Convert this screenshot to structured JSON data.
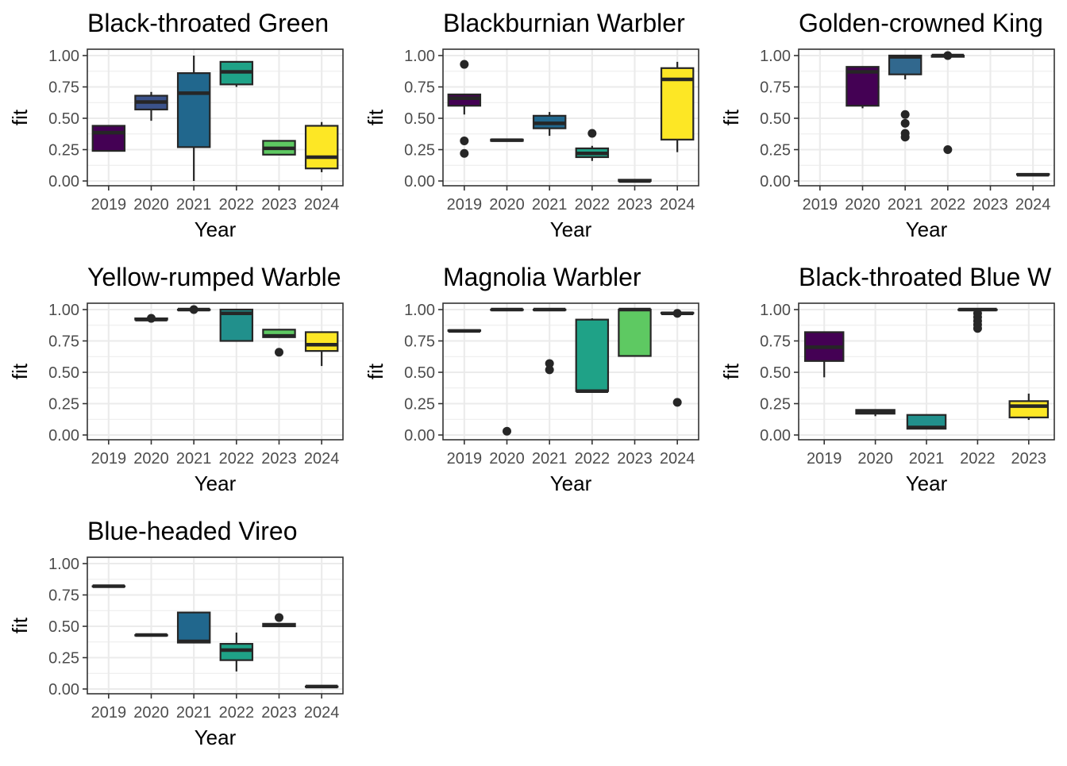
{
  "chart_data": {
    "type": "boxplot",
    "layout": "facet-grid-3-columns",
    "y_label": "fit",
    "x_label": "Year",
    "ylim": [
      0,
      1.0
    ],
    "y_ticks": [
      "0.00",
      "0.25",
      "0.50",
      "0.75",
      "1.00"
    ],
    "y_tick_values": [
      0,
      0.25,
      0.5,
      0.75,
      1.0
    ],
    "grid": true,
    "fill_colors": {
      "2019": "#440154",
      "2020": "#31688e",
      "2021": "#21908c",
      "2022": "#35b779",
      "2023": "#90d743",
      "2024": "#fde725"
    },
    "panels": [
      {
        "title": "Black-throated Green",
        "categories": [
          "2019",
          "2020",
          "2021",
          "2022",
          "2023",
          "2024"
        ],
        "boxes": [
          {
            "year": "2019",
            "fill": "#440154",
            "min": 0.24,
            "q1": 0.24,
            "median": 0.385,
            "q3": 0.44,
            "max": 0.44,
            "outliers": []
          },
          {
            "year": "2020",
            "fill": "#3b528b",
            "min": 0.48,
            "q1": 0.57,
            "median": 0.63,
            "q3": 0.68,
            "max": 0.71,
            "outliers": []
          },
          {
            "year": "2021",
            "fill": "#21678d",
            "min": 0.0,
            "q1": 0.27,
            "median": 0.7,
            "q3": 0.86,
            "max": 1.0,
            "outliers": []
          },
          {
            "year": "2022",
            "fill": "#1fa287",
            "min": 0.75,
            "q1": 0.77,
            "median": 0.87,
            "q3": 0.95,
            "max": 0.95,
            "outliers": []
          },
          {
            "year": "2023",
            "fill": "#5ec962",
            "min": 0.21,
            "q1": 0.21,
            "median": 0.26,
            "q3": 0.32,
            "max": 0.32,
            "outliers": []
          },
          {
            "year": "2024",
            "fill": "#fde725",
            "min": 0.07,
            "q1": 0.1,
            "median": 0.19,
            "q3": 0.44,
            "max": 0.47,
            "outliers": []
          }
        ]
      },
      {
        "title": "Blackburnian Warbler",
        "categories": [
          "2019",
          "2020",
          "2021",
          "2022",
          "2023",
          "2024"
        ],
        "boxes": [
          {
            "year": "2019",
            "fill": "#440154",
            "min": 0.53,
            "q1": 0.6,
            "median": 0.66,
            "q3": 0.69,
            "max": 0.69,
            "outliers": [
              0.93,
              0.32,
              0.22
            ]
          },
          {
            "year": "2020",
            "fill": "#3b528b",
            "min": 0.32,
            "q1": 0.32,
            "median": 0.325,
            "q3": 0.33,
            "max": 0.33,
            "outliers": []
          },
          {
            "year": "2021",
            "fill": "#21678d",
            "min": 0.36,
            "q1": 0.42,
            "median": 0.46,
            "q3": 0.52,
            "max": 0.55,
            "outliers": []
          },
          {
            "year": "2022",
            "fill": "#1fa287",
            "min": 0.16,
            "q1": 0.19,
            "median": 0.22,
            "q3": 0.26,
            "max": 0.28,
            "outliers": [
              0.38
            ]
          },
          {
            "year": "2023",
            "fill": "#5ec962",
            "min": 0.0,
            "q1": 0.0,
            "median": 0.0,
            "q3": 0.01,
            "max": 0.01,
            "outliers": []
          },
          {
            "year": "2024",
            "fill": "#fde725",
            "min": 0.23,
            "q1": 0.33,
            "median": 0.81,
            "q3": 0.9,
            "max": 0.95,
            "outliers": []
          }
        ]
      },
      {
        "title": "Golden-crowned King",
        "categories": [
          "2019",
          "2020",
          "2021",
          "2022",
          "2023",
          "2024"
        ],
        "boxes": [
          {
            "year": "2020",
            "fill": "#440154",
            "min": 0.58,
            "q1": 0.6,
            "median": 0.87,
            "q3": 0.91,
            "max": 0.91,
            "outliers": []
          },
          {
            "year": "2021",
            "fill": "#31688e",
            "min": 0.81,
            "q1": 0.85,
            "median": 0.99,
            "q3": 1.0,
            "max": 1.0,
            "outliers": [
              0.53,
              0.46,
              0.38,
              0.35
            ]
          },
          {
            "year": "2022",
            "fill": "#21908c",
            "min": 0.98,
            "q1": 0.99,
            "median": 1.0,
            "q3": 1.0,
            "max": 1.0,
            "outliers": [
              1.0,
              0.25
            ]
          },
          {
            "year": "2024",
            "fill": "#fde725",
            "min": 0.05,
            "q1": 0.05,
            "median": 0.05,
            "q3": 0.055,
            "max": 0.055,
            "outliers": []
          }
        ]
      },
      {
        "title": "Yellow-rumped Warble",
        "categories": [
          "2019",
          "2020",
          "2021",
          "2022",
          "2023",
          "2024"
        ],
        "boxes": [
          {
            "year": "2020",
            "fill": "#440154",
            "min": 0.92,
            "q1": 0.92,
            "median": 0.92,
            "q3": 0.93,
            "max": 0.93,
            "outliers": [
              0.93
            ]
          },
          {
            "year": "2021",
            "fill": "#31688e",
            "min": 1.0,
            "q1": 1.0,
            "median": 1.0,
            "q3": 1.0,
            "max": 1.0,
            "outliers": [
              1.0
            ]
          },
          {
            "year": "2022",
            "fill": "#21908c",
            "min": 0.75,
            "q1": 0.75,
            "median": 0.97,
            "q3": 1.0,
            "max": 1.0,
            "outliers": []
          },
          {
            "year": "2023",
            "fill": "#5ec962",
            "min": 0.78,
            "q1": 0.78,
            "median": 0.79,
            "q3": 0.84,
            "max": 0.84,
            "outliers": [
              0.66
            ]
          },
          {
            "year": "2024",
            "fill": "#fde725",
            "min": 0.55,
            "q1": 0.67,
            "median": 0.72,
            "q3": 0.82,
            "max": 0.82,
            "outliers": []
          }
        ]
      },
      {
        "title": "Magnolia Warbler",
        "categories": [
          "2019",
          "2020",
          "2021",
          "2022",
          "2023",
          "2024"
        ],
        "boxes": [
          {
            "year": "2019",
            "fill": "#440154",
            "min": 0.83,
            "q1": 0.83,
            "median": 0.83,
            "q3": 0.835,
            "max": 0.835,
            "outliers": []
          },
          {
            "year": "2020",
            "fill": "#3b528b",
            "min": 1.0,
            "q1": 1.0,
            "median": 1.0,
            "q3": 1.0,
            "max": 1.0,
            "outliers": [
              0.03
            ]
          },
          {
            "year": "2021",
            "fill": "#21678d",
            "min": 1.0,
            "q1": 1.0,
            "median": 1.0,
            "q3": 1.0,
            "max": 1.0,
            "outliers": [
              0.57,
              0.52
            ]
          },
          {
            "year": "2022",
            "fill": "#1fa287",
            "min": 0.35,
            "q1": 0.35,
            "median": 0.35,
            "q3": 0.92,
            "max": 0.93,
            "outliers": []
          },
          {
            "year": "2023",
            "fill": "#5ec962",
            "min": 0.63,
            "q1": 0.63,
            "median": 1.0,
            "q3": 1.0,
            "max": 1.0,
            "outliers": []
          },
          {
            "year": "2024",
            "fill": "#fde725",
            "min": 0.97,
            "q1": 0.97,
            "median": 0.97,
            "q3": 0.975,
            "max": 0.975,
            "outliers": [
              0.97,
              0.26
            ]
          }
        ]
      },
      {
        "title": "Black-throated Blue W",
        "categories": [
          "2019",
          "2020",
          "2021",
          "2022",
          "2023"
        ],
        "boxes": [
          {
            "year": "2019",
            "fill": "#440154",
            "min": 0.46,
            "q1": 0.59,
            "median": 0.7,
            "q3": 0.82,
            "max": 0.82,
            "outliers": []
          },
          {
            "year": "2020",
            "fill": "#3b528b",
            "min": 0.15,
            "q1": 0.17,
            "median": 0.18,
            "q3": 0.2,
            "max": 0.2,
            "outliers": []
          },
          {
            "year": "2021",
            "fill": "#21908c",
            "min": 0.05,
            "q1": 0.05,
            "median": 0.06,
            "q3": 0.16,
            "max": 0.16,
            "outliers": []
          },
          {
            "year": "2022",
            "fill": "#5ec962",
            "min": 1.0,
            "q1": 1.0,
            "median": 1.0,
            "q3": 1.0,
            "max": 1.0,
            "outliers": [
              0.97,
              0.94,
              0.91,
              0.88,
              0.85
            ]
          },
          {
            "year": "2023",
            "fill": "#fde725",
            "min": 0.12,
            "q1": 0.14,
            "median": 0.23,
            "q3": 0.27,
            "max": 0.33,
            "outliers": []
          }
        ]
      },
      {
        "title": "Blue-headed Vireo",
        "categories": [
          "2019",
          "2020",
          "2021",
          "2022",
          "2023",
          "2024"
        ],
        "boxes": [
          {
            "year": "2019",
            "fill": "#440154",
            "min": 0.82,
            "q1": 0.82,
            "median": 0.82,
            "q3": 0.82,
            "max": 0.82,
            "outliers": []
          },
          {
            "year": "2020",
            "fill": "#3b528b",
            "min": 0.43,
            "q1": 0.43,
            "median": 0.43,
            "q3": 0.43,
            "max": 0.43,
            "outliers": []
          },
          {
            "year": "2021",
            "fill": "#21678d",
            "min": 0.37,
            "q1": 0.37,
            "median": 0.38,
            "q3": 0.61,
            "max": 0.61,
            "outliers": []
          },
          {
            "year": "2022",
            "fill": "#1fa287",
            "min": 0.14,
            "q1": 0.23,
            "median": 0.31,
            "q3": 0.36,
            "max": 0.45,
            "outliers": []
          },
          {
            "year": "2023",
            "fill": "#5ec962",
            "min": 0.5,
            "q1": 0.5,
            "median": 0.51,
            "q3": 0.52,
            "max": 0.52,
            "outliers": [
              0.57
            ]
          },
          {
            "year": "2024",
            "fill": "#fde725",
            "min": 0.02,
            "q1": 0.02,
            "median": 0.02,
            "q3": 0.02,
            "max": 0.02,
            "outliers": []
          }
        ]
      }
    ]
  }
}
